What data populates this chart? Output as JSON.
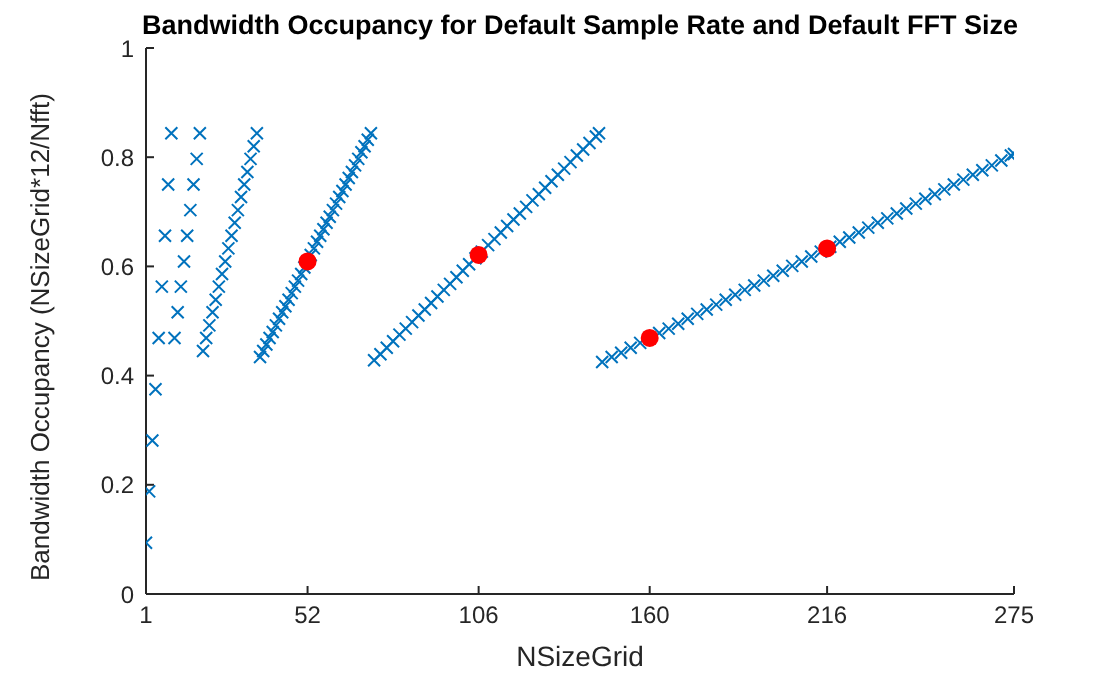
{
  "chart_data": {
    "type": "scatter",
    "title": "Bandwidth Occupancy for Default Sample Rate and Default FFT Size",
    "xlabel": "NSizeGrid",
    "ylabel": "Bandwidth Occupancy (NSizeGrid*12/Nfft)",
    "xlim": [
      1,
      275
    ],
    "xticks": [
      1,
      52,
      106,
      160,
      216,
      275
    ],
    "ylim": [
      0,
      1
    ],
    "yticks": [
      0,
      0.2,
      0.4,
      0.6,
      0.8,
      1
    ],
    "grid": false,
    "series": [
      {
        "color": "#0072bd",
        "marker": "cross",
        "x": [
          1,
          2,
          3,
          4,
          5,
          6,
          7,
          8,
          9,
          10,
          11,
          12,
          13,
          14,
          15,
          16,
          17,
          18,
          19,
          20,
          21,
          22,
          23,
          24,
          25,
          26,
          27,
          28,
          29,
          30,
          31,
          32,
          33,
          34,
          35,
          36,
          37,
          38,
          39,
          40,
          41,
          42,
          43,
          44,
          45,
          46,
          47,
          48,
          49,
          50,
          51,
          52,
          53,
          54,
          55,
          56,
          57,
          58,
          59,
          60,
          61,
          62,
          63,
          64,
          65,
          66,
          67,
          68,
          69,
          70,
          71,
          72,
          73,
          75,
          77,
          79,
          81,
          83,
          85,
          87,
          89,
          91,
          93,
          95,
          97,
          99,
          101,
          103,
          105,
          107,
          109,
          111,
          113,
          115,
          117,
          119,
          121,
          123,
          125,
          127,
          129,
          131,
          133,
          135,
          137,
          139,
          141,
          143,
          144,
          145,
          148,
          151,
          154,
          157,
          160,
          163,
          166,
          169,
          172,
          175,
          178,
          181,
          184,
          187,
          190,
          193,
          196,
          199,
          202,
          205,
          208,
          211,
          214,
          217,
          220,
          223,
          226,
          229,
          232,
          235,
          238,
          241,
          244,
          247,
          250,
          253,
          256,
          259,
          262,
          265,
          268,
          271,
          274,
          275
        ],
        "values": [
          0.094,
          0.188,
          0.281,
          0.375,
          0.469,
          0.563,
          0.656,
          0.75,
          0.844,
          0.469,
          0.516,
          0.563,
          0.609,
          0.656,
          0.703,
          0.75,
          0.797,
          0.844,
          0.445,
          0.469,
          0.492,
          0.516,
          0.539,
          0.563,
          0.586,
          0.609,
          0.633,
          0.656,
          0.68,
          0.703,
          0.727,
          0.75,
          0.773,
          0.797,
          0.82,
          0.844,
          0.434,
          0.445,
          0.457,
          0.469,
          0.48,
          0.492,
          0.504,
          0.516,
          0.527,
          0.539,
          0.551,
          0.563,
          0.574,
          0.586,
          0.598,
          null,
          0.621,
          0.633,
          0.645,
          0.656,
          0.668,
          0.68,
          0.691,
          0.703,
          0.715,
          0.727,
          0.738,
          0.75,
          0.762,
          0.773,
          0.785,
          0.797,
          0.809,
          0.82,
          0.832,
          0.844,
          0.428,
          0.439,
          0.451,
          0.463,
          0.475,
          0.486,
          0.498,
          0.51,
          0.521,
          0.533,
          0.545,
          0.557,
          0.568,
          0.58,
          0.592,
          0.604,
          0.615,
          0.627,
          0.639,
          0.65,
          0.662,
          0.674,
          0.686,
          0.697,
          0.709,
          0.721,
          0.732,
          0.744,
          0.756,
          0.768,
          0.779,
          0.791,
          0.803,
          0.814,
          0.826,
          0.838,
          0.844,
          0.425,
          0.434,
          0.442,
          0.451,
          0.46,
          0.469,
          0.478,
          0.486,
          0.495,
          0.504,
          0.513,
          0.521,
          0.53,
          0.539,
          0.548,
          0.557,
          0.565,
          0.574,
          0.583,
          0.592,
          0.601,
          0.609,
          0.618,
          0.627,
          0.636,
          0.645,
          0.653,
          0.662,
          0.671,
          0.68,
          0.688,
          0.697,
          0.706,
          0.715,
          0.724,
          0.732,
          0.741,
          0.75,
          0.759,
          0.768,
          0.776,
          0.785,
          0.794,
          0.803,
          0.806
        ]
      },
      {
        "color": "#ff0000",
        "marker": "circle",
        "x": [
          52,
          106,
          160,
          216
        ],
        "values": [
          0.609,
          0.621,
          0.469,
          0.633
        ]
      }
    ]
  }
}
